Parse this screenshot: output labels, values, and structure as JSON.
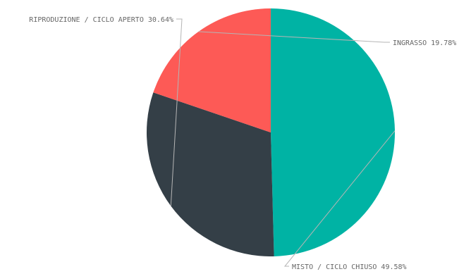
{
  "chart_data": {
    "type": "pie",
    "title": "",
    "slices": [
      {
        "label": "MISTO / CICLO CHIUSO",
        "value": 49.58,
        "value_label": "49.58%",
        "color": "#00b3a4"
      },
      {
        "label": "RIPRODUZIONE / CICLO APERTO",
        "value": 30.64,
        "value_label": "30.64%",
        "color": "#343f47"
      },
      {
        "label": "INGRASSO",
        "value": 19.78,
        "value_label": "19.78%",
        "color": "#fd5a56"
      }
    ],
    "start_angle_deg": 90,
    "direction": "clockwise",
    "legend": "none",
    "labels": "outside-with-leader-lines"
  }
}
